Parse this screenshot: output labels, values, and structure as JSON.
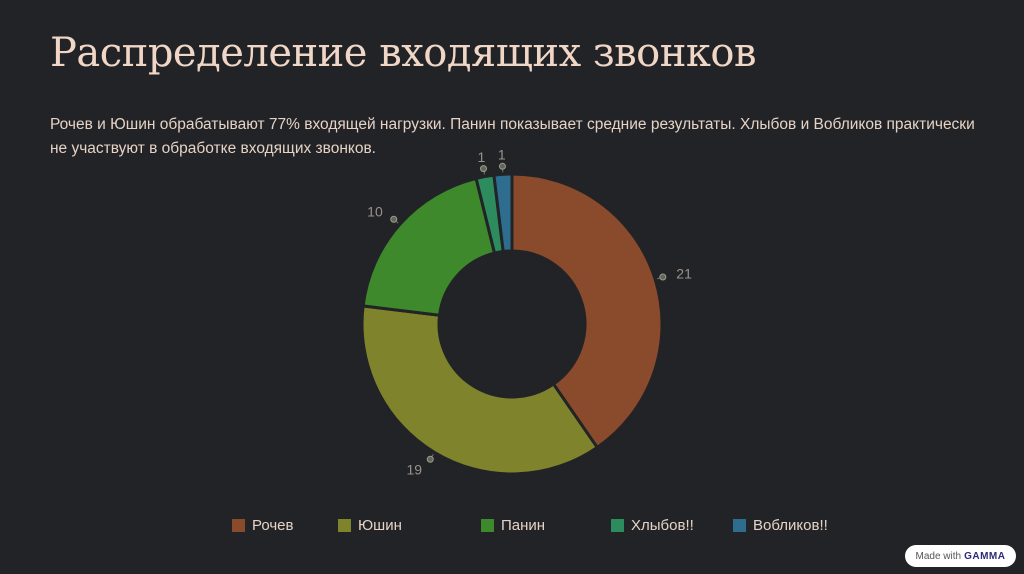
{
  "page": {
    "title": "Распределение входящих звонков",
    "subtitle": "Рочев и Юшин обрабатывают 77% входящей нагрузки. Панин показывает средние результаты. Хлыбов и Вобликов практически не участвуют в обработке входящих звонков."
  },
  "chart_data": {
    "type": "pie",
    "variant": "donut",
    "categories": [
      "Рочев",
      "Юшин",
      "Панин",
      "Хлыбов!!",
      "Вобликов!!"
    ],
    "values": [
      21,
      19,
      10,
      1,
      1
    ],
    "colors": [
      "#8a4a2c",
      "#7e832c",
      "#3e892c",
      "#2d8c5e",
      "#2e6d8e"
    ],
    "legend": "bottom"
  },
  "badge": {
    "prefix": "Made with",
    "brand": "GAMMA"
  }
}
